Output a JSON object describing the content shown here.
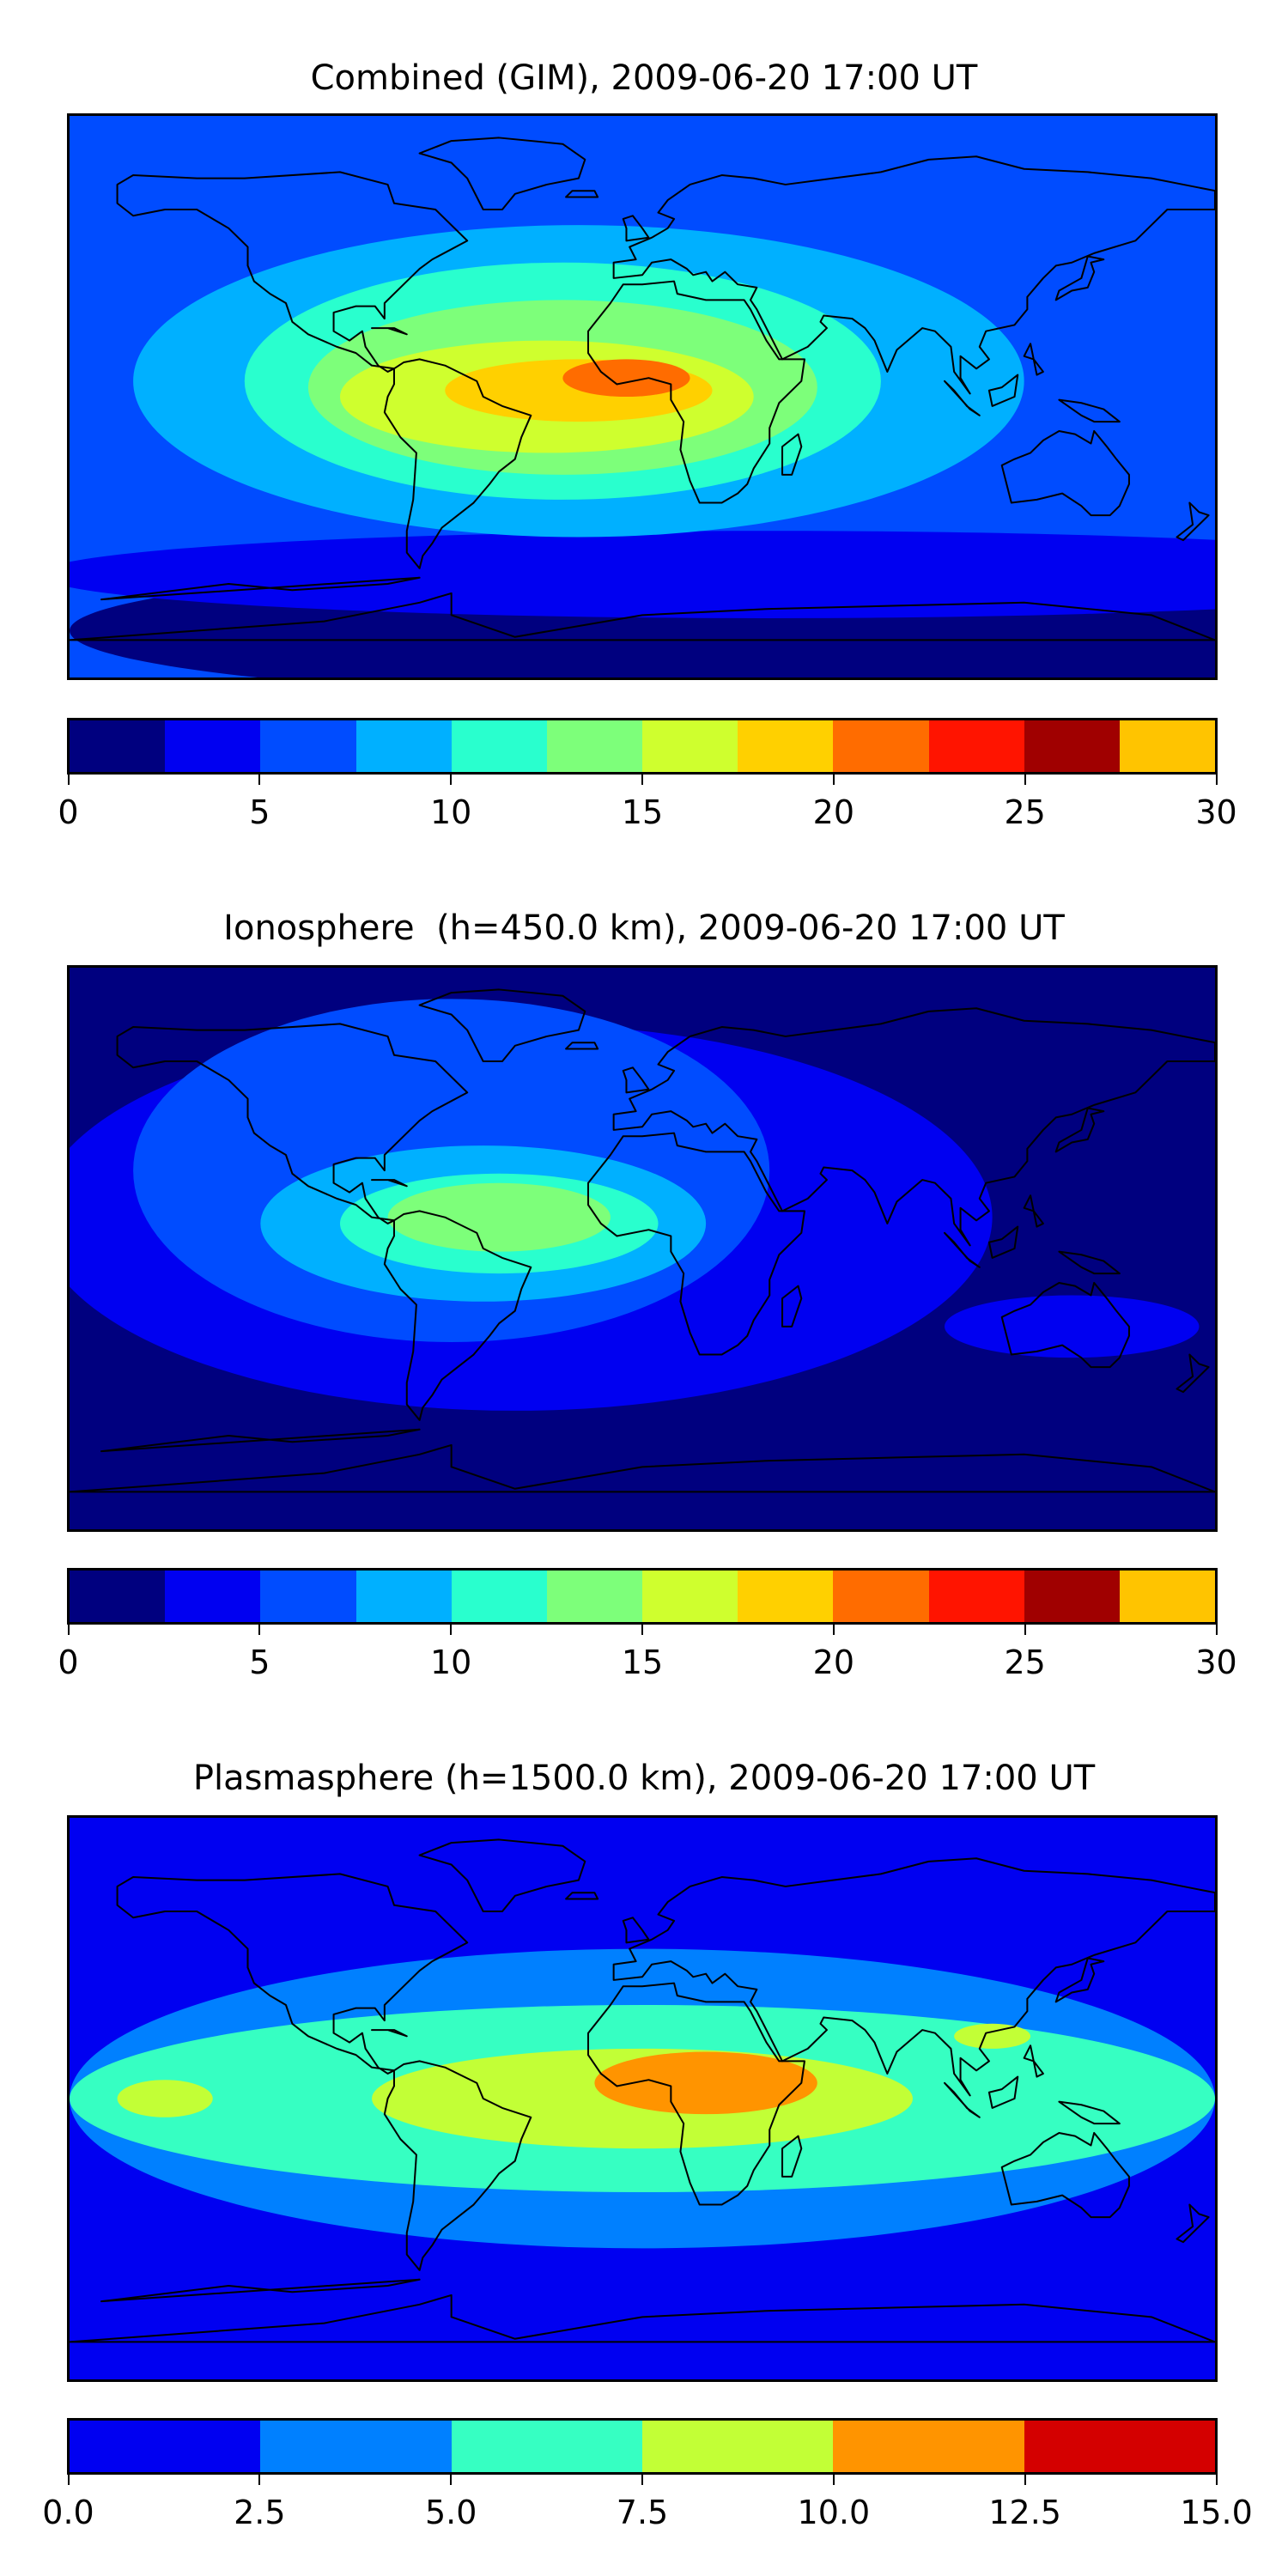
{
  "chart_data": [
    {
      "type": "heatmap",
      "title": "Combined (GIM), 2009-06-20 17:00 UT",
      "colorbar": {
        "ticks": [
          "0",
          "5",
          "10",
          "15",
          "20",
          "25",
          "30"
        ],
        "levels": [
          0,
          2.5,
          5,
          7.5,
          10,
          12.5,
          15,
          17.5,
          20,
          22.5,
          25,
          27.5,
          30
        ],
        "colors": [
          "#00007f",
          "#0000f1",
          "#004cff",
          "#00b0ff",
          "#29ffce",
          "#7dff7a",
          "#cfff2e",
          "#ffd000",
          "#ff6c00",
          "#ff1400",
          "#a00000",
          "#ffc400"
        ]
      },
      "map_background_color": "#004cff",
      "map_regions": [
        {
          "level": "0-2.5",
          "color": "#00007f",
          "lon": 40,
          "lat": -75,
          "rx": 220,
          "ry": 22
        },
        {
          "level": "2.5-5",
          "color": "#0000f1",
          "lon": 40,
          "lat": -57,
          "rx": 230,
          "ry": 14
        },
        {
          "level": "7.5-10",
          "color": "#00b0ff",
          "lon": -20,
          "lat": 5,
          "rx": 140,
          "ry": 50
        },
        {
          "level": "10-12.5",
          "color": "#29ffce",
          "lon": -25,
          "lat": 5,
          "rx": 100,
          "ry": 38
        },
        {
          "level": "12.5-15",
          "color": "#7dff7a",
          "lon": -25,
          "lat": 3,
          "rx": 80,
          "ry": 28
        },
        {
          "level": "15-17.5",
          "color": "#cfff2e",
          "lon": -30,
          "lat": 0,
          "rx": 65,
          "ry": 18
        },
        {
          "level": "17.5-20",
          "color": "#ffd000",
          "lon": -20,
          "lat": 2,
          "rx": 42,
          "ry": 10
        },
        {
          "level": "20-22.5",
          "color": "#ff6c00",
          "lon": -5,
          "lat": 6,
          "rx": 20,
          "ry": 6
        }
      ]
    },
    {
      "type": "heatmap",
      "title": "Ionosphere  (h=450.0 km), 2009-06-20 17:00 UT",
      "colorbar": {
        "ticks": [
          "0",
          "5",
          "10",
          "15",
          "20",
          "25",
          "30"
        ],
        "levels": [
          0,
          2.5,
          5,
          7.5,
          10,
          12.5,
          15,
          17.5,
          20,
          22.5,
          25,
          27.5,
          30
        ],
        "colors": [
          "#00007f",
          "#0000f1",
          "#004cff",
          "#00b0ff",
          "#29ffce",
          "#7dff7a",
          "#cfff2e",
          "#ffd000",
          "#ff6c00",
          "#ff1400",
          "#a00000",
          "#ffc400"
        ]
      },
      "map_background_color": "#00007f",
      "map_regions": [
        {
          "level": "2.5-5",
          "color": "#0000f1",
          "lon": -40,
          "lat": 10,
          "rx": 150,
          "ry": 62
        },
        {
          "level": "2.5-5",
          "color": "#0000f1",
          "lon": 135,
          "lat": -25,
          "rx": 40,
          "ry": 10
        },
        {
          "level": "5-7.5",
          "color": "#004cff",
          "lon": -60,
          "lat": 25,
          "rx": 100,
          "ry": 55
        },
        {
          "level": "7.5-10",
          "color": "#00b0ff",
          "lon": -50,
          "lat": 8,
          "rx": 70,
          "ry": 25
        },
        {
          "level": "10-12.5",
          "color": "#29ffce",
          "lon": -45,
          "lat": 8,
          "rx": 50,
          "ry": 16
        },
        {
          "level": "12.5-15",
          "color": "#7dff7a",
          "lon": -45,
          "lat": 10,
          "rx": 35,
          "ry": 11
        }
      ]
    },
    {
      "type": "heatmap",
      "title": "Plasmasphere (h=1500.0 km), 2009-06-20 17:00 UT",
      "colorbar": {
        "ticks": [
          "0.0",
          "2.5",
          "5.0",
          "7.5",
          "10.0",
          "12.5",
          "15.0"
        ],
        "levels": [
          0,
          2.5,
          5,
          7.5,
          10,
          12.5,
          15
        ],
        "colors": [
          "#0000f1",
          "#0080ff",
          "#36ffc2",
          "#c2ff36",
          "#ff9400",
          "#d40000"
        ]
      },
      "map_background_color": "#0000f1",
      "map_regions": [
        {
          "level": "2.5-5",
          "color": "#0080ff",
          "lon": 0,
          "lat": 0,
          "rx": 180,
          "ry": 48
        },
        {
          "level": "5-7.5",
          "color": "#36ffc2",
          "lon": 0,
          "lat": 0,
          "rx": 180,
          "ry": 30
        },
        {
          "level": "7.5-10",
          "color": "#c2ff36",
          "lon": 0,
          "lat": 0,
          "rx": 85,
          "ry": 16
        },
        {
          "level": "7.5-10",
          "color": "#c2ff36",
          "lon": -150,
          "lat": 0,
          "rx": 15,
          "ry": 6
        },
        {
          "level": "7.5-10",
          "color": "#c2ff36",
          "lon": 110,
          "lat": 20,
          "rx": 12,
          "ry": 4
        },
        {
          "level": "10-12.5",
          "color": "#ff9400",
          "lon": 20,
          "lat": 5,
          "rx": 35,
          "ry": 10
        }
      ]
    }
  ]
}
